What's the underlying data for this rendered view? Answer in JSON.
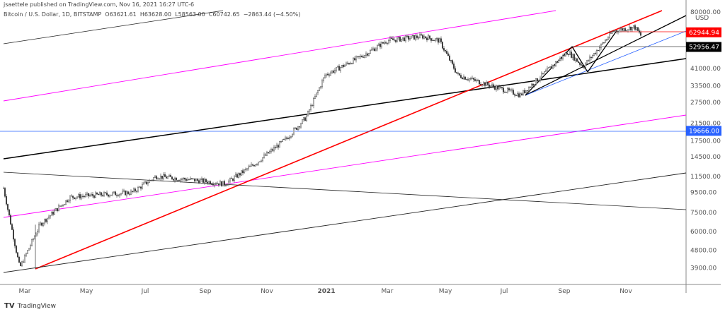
{
  "header": {
    "published": "jsaettele published on TradingView.com, Nov 16, 2021 16:27 UTC-6",
    "symbol": "Bitcoin / U.S. Dollar, 1D, BITSTAMP",
    "open": "O63621.61",
    "high": "H63628.00",
    "low": "L58563.00",
    "close": "C60742.65",
    "change": "−2863.44 (−4.50%)"
  },
  "footer": {
    "brand": "TradingView",
    "logo": "TV"
  },
  "chart_data": {
    "type": "candlestick",
    "currency": "USD",
    "yscale": "log",
    "ylim": [
      3500,
      85000
    ],
    "y_ticks": [
      "80000.00",
      "41000.00",
      "33500.00",
      "27500.00",
      "21500.00",
      "17500.00",
      "14500.00",
      "11500.00",
      "9500.00",
      "7500.00",
      "6000.00",
      "4800.00",
      "3900.00"
    ],
    "x_ticks": [
      "Mar",
      "May",
      "Jul",
      "Sep",
      "Nov",
      "2021",
      "Mar",
      "May",
      "Jul",
      "Sep",
      "Nov"
    ],
    "price_labels": [
      {
        "value": "62944.94",
        "color": "#ff0000"
      },
      {
        "value": "52956.47",
        "color": "#000000"
      },
      {
        "value": "19666.00",
        "color": "#2962ff"
      }
    ],
    "approx_closes": [
      [
        "2020-02-25",
        10000
      ],
      [
        "2020-03-12",
        3900
      ],
      [
        "2020-04-01",
        6500
      ],
      [
        "2020-05-01",
        9000
      ],
      [
        "2020-07-01",
        9500
      ],
      [
        "2020-07-25",
        11500
      ],
      [
        "2020-09-01",
        11000
      ],
      [
        "2020-10-01",
        10500
      ],
      [
        "2020-11-01",
        13500
      ],
      [
        "2020-12-01",
        18000
      ],
      [
        "2020-12-20",
        23000
      ],
      [
        "2021-01-08",
        38000
      ],
      [
        "2021-02-15",
        48000
      ],
      [
        "2021-03-10",
        57000
      ],
      [
        "2021-04-14",
        60000
      ],
      [
        "2021-05-01",
        57000
      ],
      [
        "2021-05-19",
        38000
      ],
      [
        "2021-07-20",
        30000
      ],
      [
        "2021-09-05",
        50000
      ],
      [
        "2021-09-20",
        42000
      ],
      [
        "2021-10-20",
        64000
      ],
      [
        "2021-11-10",
        67000
      ],
      [
        "2021-11-16",
        60742
      ]
    ]
  }
}
